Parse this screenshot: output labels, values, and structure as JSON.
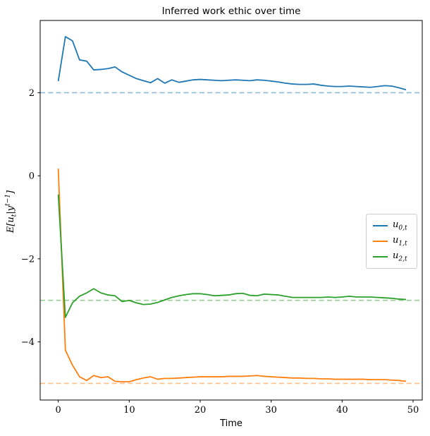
{
  "chart_data": {
    "type": "line",
    "title": "Inferred work ethic over time",
    "xlabel": "Time",
    "ylabel": "E[u_t|y^(t-1)]",
    "ylabel_parts": [
      {
        "text": "E[u"
      },
      {
        "text": "t",
        "style": "sub"
      },
      {
        "text": "|y",
        "style": ""
      },
      {
        "text": "t−1",
        "style": "sup"
      },
      {
        "text": "]",
        "style": ""
      }
    ],
    "x_ticks": [
      0,
      10,
      20,
      30,
      40,
      50
    ],
    "y_ticks": [
      2,
      0,
      -2,
      -4
    ],
    "xlim": [
      -2.55,
      51.29
    ],
    "ylim": [
      -5.4,
      3.74
    ],
    "grid": false,
    "x_start": 0,
    "x_step": 1,
    "series": [
      {
        "id": "u0",
        "name": "u_{0,t}",
        "color": "#1f77b4",
        "asymptote": 2,
        "asymptote_color": "#8fbbd9",
        "values": [
          2.28,
          3.35,
          3.25,
          2.79,
          2.76,
          2.55,
          2.56,
          2.58,
          2.62,
          2.5,
          2.42,
          2.34,
          2.29,
          2.24,
          2.34,
          2.23,
          2.31,
          2.25,
          2.28,
          2.31,
          2.32,
          2.31,
          2.3,
          2.29,
          2.3,
          2.31,
          2.3,
          2.29,
          2.31,
          2.3,
          2.28,
          2.26,
          2.23,
          2.21,
          2.2,
          2.2,
          2.21,
          2.18,
          2.16,
          2.15,
          2.15,
          2.16,
          2.15,
          2.14,
          2.13,
          2.15,
          2.17,
          2.16,
          2.12,
          2.07
        ]
      },
      {
        "id": "u1",
        "name": "u_{1,t}",
        "color": "#ff7f0e",
        "asymptote": -5,
        "asymptote_color": "#ffbf87",
        "values": [
          0.17,
          -4.2,
          -4.56,
          -4.84,
          -4.93,
          -4.81,
          -4.86,
          -4.84,
          -4.95,
          -4.96,
          -4.96,
          -4.91,
          -4.87,
          -4.84,
          -4.9,
          -4.88,
          -4.88,
          -4.87,
          -4.86,
          -4.85,
          -4.84,
          -4.84,
          -4.84,
          -4.84,
          -4.83,
          -4.83,
          -4.83,
          -4.82,
          -4.81,
          -4.83,
          -4.84,
          -4.85,
          -4.86,
          -4.87,
          -4.87,
          -4.88,
          -4.88,
          -4.89,
          -4.89,
          -4.9,
          -4.9,
          -4.9,
          -4.9,
          -4.9,
          -4.91,
          -4.91,
          -4.91,
          -4.92,
          -4.93,
          -4.95
        ]
      },
      {
        "id": "u2",
        "name": "u_{2,t}",
        "color": "#2ca02c",
        "asymptote": -3,
        "asymptote_color": "#95cf95",
        "values": [
          -0.45,
          -3.41,
          -3.06,
          -2.9,
          -2.82,
          -2.72,
          -2.82,
          -2.87,
          -2.89,
          -3.03,
          -3.0,
          -3.06,
          -3.1,
          -3.09,
          -3.05,
          -2.99,
          -2.93,
          -2.89,
          -2.86,
          -2.84,
          -2.84,
          -2.86,
          -2.89,
          -2.88,
          -2.87,
          -2.84,
          -2.83,
          -2.88,
          -2.89,
          -2.85,
          -2.86,
          -2.87,
          -2.9,
          -2.93,
          -2.93,
          -2.93,
          -2.93,
          -2.93,
          -2.92,
          -2.93,
          -2.92,
          -2.9,
          -2.92,
          -2.92,
          -2.92,
          -2.93,
          -2.94,
          -2.95,
          -2.97,
          -2.98
        ]
      }
    ],
    "legend": {
      "position": "center right",
      "items": [
        {
          "base": "u",
          "sub": "0,t",
          "color": "#1f77b4"
        },
        {
          "base": "u",
          "sub": "1,t",
          "color": "#ff7f0e"
        },
        {
          "base": "u",
          "sub": "2,t",
          "color": "#2ca02c"
        }
      ]
    }
  }
}
